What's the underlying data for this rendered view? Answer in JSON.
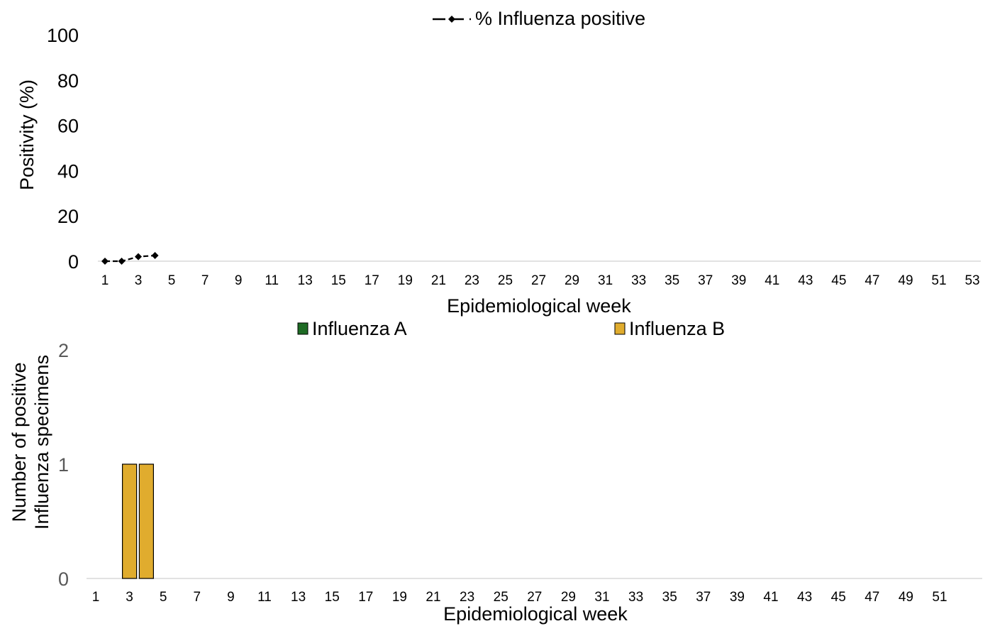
{
  "chart_data": [
    {
      "type": "line",
      "ylabel": "Positivity (%)",
      "xlabel": "Epidemiological week",
      "ylim": [
        0,
        100
      ],
      "yticks": [
        0,
        20,
        40,
        60,
        80,
        100
      ],
      "xlim": [
        1,
        53
      ],
      "xticks": [
        1,
        3,
        5,
        7,
        9,
        11,
        13,
        15,
        17,
        19,
        21,
        23,
        25,
        27,
        29,
        31,
        33,
        35,
        37,
        39,
        41,
        43,
        45,
        47,
        49,
        51,
        53
      ],
      "legend_position": "top-center",
      "series": [
        {
          "name": "% Influenza positive",
          "color": "#000000",
          "marker": "diamond",
          "dash": "dashed",
          "x": [
            1,
            2,
            3,
            4
          ],
          "y": [
            0,
            0,
            2,
            2.5
          ]
        }
      ]
    },
    {
      "type": "bar",
      "ylabel": "Number of positive Influenza specimens",
      "ylabel_lines": [
        "Number of positive",
        "Influenza specimens"
      ],
      "xlabel": "Epidemiological week",
      "ylim": [
        0,
        2
      ],
      "yticks": [
        0,
        1,
        2
      ],
      "xlim": [
        1,
        52
      ],
      "xticks": [
        1,
        3,
        5,
        7,
        9,
        11,
        13,
        15,
        17,
        19,
        21,
        23,
        25,
        27,
        29,
        31,
        33,
        35,
        37,
        39,
        41,
        43,
        45,
        47,
        49,
        51
      ],
      "legend_position": "top",
      "stacked": true,
      "series": [
        {
          "name": "Influenza A",
          "color": "#1e6b24",
          "x": [],
          "values": []
        },
        {
          "name": "Influenza B",
          "color": "#e0ac2e",
          "x": [
            3,
            4
          ],
          "values": [
            1,
            1
          ]
        }
      ]
    }
  ]
}
